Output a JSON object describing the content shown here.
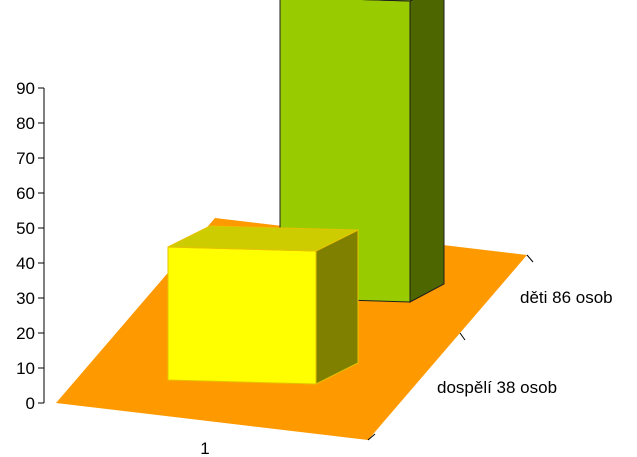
{
  "chart_data": {
    "type": "bar",
    "categories": [
      "1"
    ],
    "series": [
      {
        "name": "dospělí 38 osob",
        "values": [
          38
        ],
        "color": "#FFFF00"
      },
      {
        "name": "děti 86 osob",
        "values": [
          86
        ],
        "color": "#99CC00"
      }
    ],
    "y_ticks": [
      "0",
      "10",
      "20",
      "30",
      "40",
      "50",
      "60",
      "70",
      "80",
      "90"
    ],
    "ylim": [
      0,
      90
    ],
    "floor_color": "#FF9900",
    "style": "3d-column",
    "grid": false
  }
}
